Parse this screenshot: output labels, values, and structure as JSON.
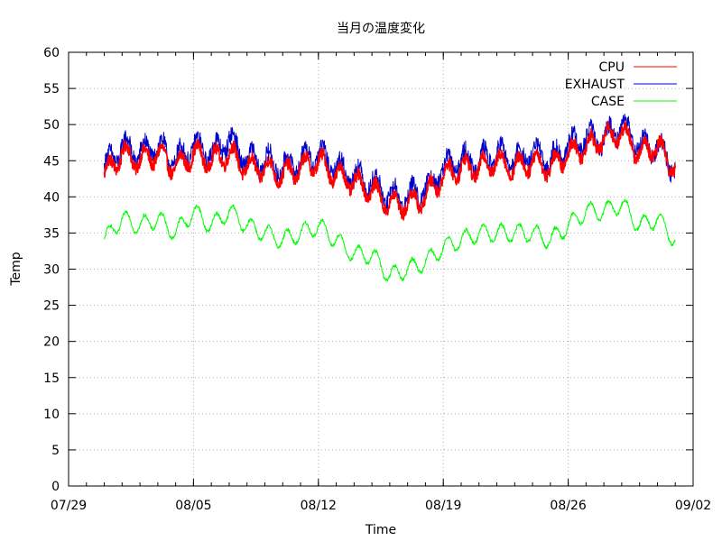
{
  "chart_data": {
    "type": "line",
    "title": "当月の温度変化",
    "xlabel": "Time",
    "ylabel": "Temp",
    "x_range": [
      "07/29",
      "09/02"
    ],
    "ylim": [
      0,
      60
    ],
    "y_ticks": [
      0,
      5,
      10,
      15,
      20,
      25,
      30,
      35,
      40,
      45,
      50,
      55,
      60
    ],
    "x_ticks": [
      "07/29",
      "08/05",
      "08/12",
      "08/19",
      "08/26",
      "09/02"
    ],
    "grid": true,
    "legend_position": "top-right",
    "series": [
      {
        "name": "CPU",
        "color": "#ff0000",
        "x": [
          "07/31",
          "08/01",
          "08/02",
          "08/03",
          "08/04",
          "08/05",
          "08/06",
          "08/07",
          "08/08",
          "08/09",
          "08/10",
          "08/11",
          "08/12",
          "08/13",
          "08/14",
          "08/15",
          "08/16",
          "08/17",
          "08/18",
          "08/19",
          "08/20",
          "08/21",
          "08/22",
          "08/23",
          "08/24",
          "08/25",
          "08/26",
          "08/27",
          "08/28",
          "08/29",
          "08/30",
          "08/31",
          "09/01"
        ],
        "values": [
          43,
          46,
          45,
          46,
          44,
          46,
          45,
          46,
          44,
          44,
          43,
          44,
          45,
          43,
          42,
          41,
          39,
          39,
          40,
          43,
          44,
          44,
          45,
          44,
          45,
          44,
          46,
          47,
          48,
          49,
          46,
          47,
          44
        ]
      },
      {
        "name": "EXHAUST",
        "color": "#0000cc",
        "x": [
          "07/31",
          "08/01",
          "08/02",
          "08/03",
          "08/04",
          "08/05",
          "08/06",
          "08/07",
          "08/08",
          "08/09",
          "08/10",
          "08/11",
          "08/12",
          "08/13",
          "08/14",
          "08/15",
          "08/16",
          "08/17",
          "08/18",
          "08/19",
          "08/20",
          "08/21",
          "08/22",
          "08/23",
          "08/24",
          "08/25",
          "08/26",
          "08/27",
          "08/28",
          "08/29",
          "08/30",
          "08/31",
          "09/01"
        ],
        "values": [
          44,
          47,
          46,
          47,
          45,
          47,
          46,
          48,
          45,
          45,
          44,
          45,
          46,
          44,
          43,
          42,
          40,
          40,
          41,
          44,
          45,
          45,
          46,
          45,
          46,
          45,
          47,
          48,
          48,
          50,
          47,
          47,
          44
        ]
      },
      {
        "name": "CASE",
        "color": "#00ff00",
        "x": [
          "07/31",
          "08/01",
          "08/02",
          "08/03",
          "08/04",
          "08/05",
          "08/06",
          "08/07",
          "08/08",
          "08/09",
          "08/10",
          "08/11",
          "08/12",
          "08/13",
          "08/14",
          "08/15",
          "08/16",
          "08/17",
          "08/18",
          "08/19",
          "08/20",
          "08/21",
          "08/22",
          "08/23",
          "08/24",
          "08/25",
          "08/26",
          "08/27",
          "08/28",
          "08/29",
          "08/30",
          "08/31",
          "09/01"
        ],
        "values": [
          34,
          37,
          36,
          37,
          35,
          38,
          36,
          38,
          36,
          35,
          34,
          35,
          36,
          34,
          32,
          32,
          29,
          30,
          31,
          33,
          34,
          35,
          35,
          35,
          35,
          34,
          36,
          38,
          38,
          39,
          36,
          37,
          34
        ]
      }
    ]
  }
}
